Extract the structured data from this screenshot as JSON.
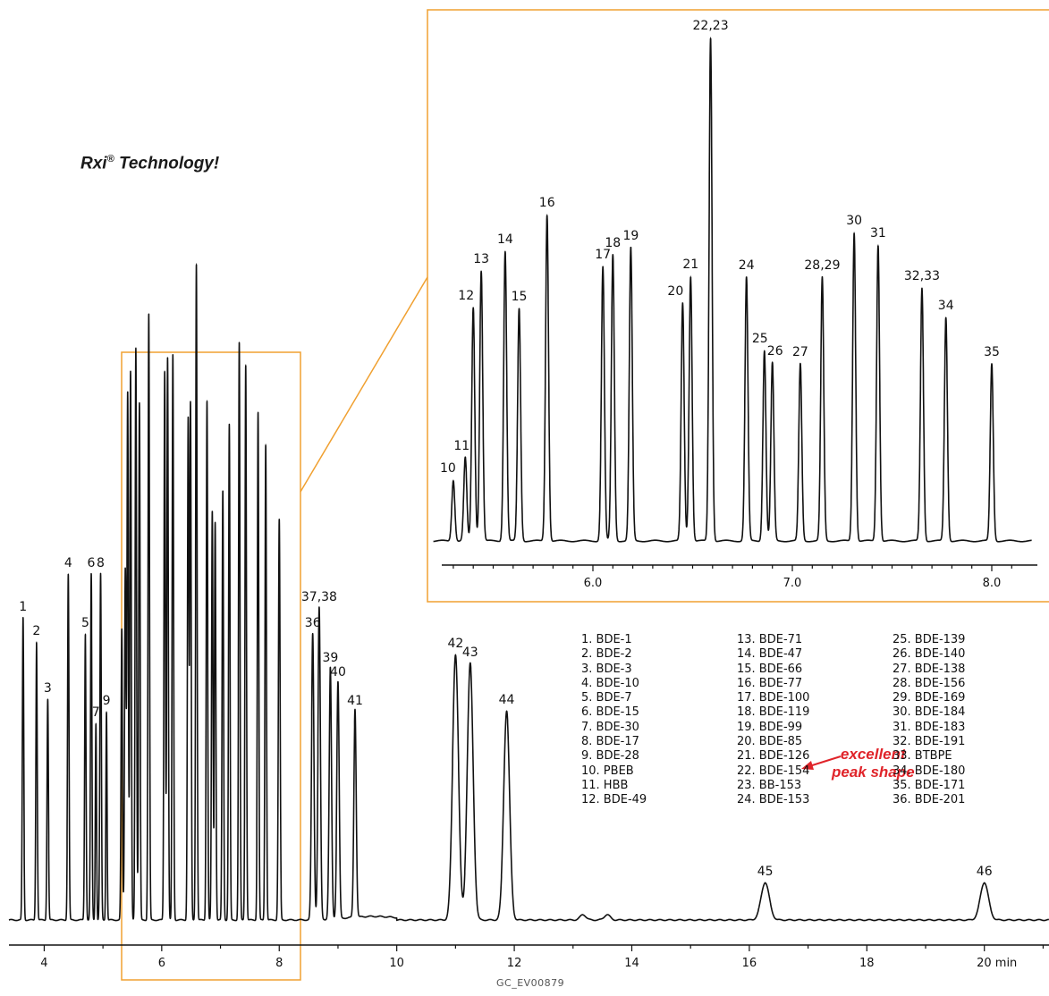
{
  "tagline": {
    "main": "Rxi",
    "reg": "®",
    "rest": " Technology!"
  },
  "footer": "GC_EV00879",
  "annotation": {
    "line1": "excellent",
    "line2": "peak shape"
  },
  "colors": {
    "trace": "#111111",
    "box": "#f0a030",
    "annotation": "#e0242a"
  },
  "chart_data": [
    {
      "type": "line",
      "name": "full chromatogram",
      "xlabel": "min",
      "xlim": [
        3.4,
        21.1
      ],
      "xticks": [
        4,
        6,
        8,
        10,
        12,
        14,
        16,
        18,
        20
      ],
      "xtick_labels": [
        "4",
        "6",
        "8",
        "10",
        "12",
        "14",
        "16",
        "18",
        "20 min"
      ],
      "zoom_box_range": [
        5.3,
        8.2
      ],
      "peaks": [
        {
          "label": "1",
          "t": 3.64,
          "h": 338,
          "w": 0.012
        },
        {
          "label": "2",
          "t": 3.87,
          "h": 311,
          "w": 0.012
        },
        {
          "label": "3",
          "t": 4.06,
          "h": 247,
          "w": 0.012
        },
        {
          "label": "4",
          "t": 4.41,
          "h": 387,
          "w": 0.012
        },
        {
          "label": "5",
          "t": 4.7,
          "h": 320,
          "w": 0.012
        },
        {
          "label": "6",
          "t": 4.8,
          "h": 387,
          "w": 0.012
        },
        {
          "label": "7",
          "t": 4.88,
          "h": 220,
          "w": 0.01
        },
        {
          "label": "8",
          "t": 4.96,
          "h": 387,
          "w": 0.012
        },
        {
          "label": "9",
          "t": 5.06,
          "h": 233,
          "w": 0.01
        },
        {
          "label": "10",
          "t": 5.32,
          "h": 325,
          "w": 0.012
        },
        {
          "label": "11",
          "t": 5.38,
          "h": 392,
          "w": 0.012
        },
        {
          "label": "12",
          "t": 5.42,
          "h": 590,
          "w": 0.012
        },
        {
          "label": "13",
          "t": 5.47,
          "h": 613,
          "w": 0.012
        },
        {
          "label": "14",
          "t": 5.56,
          "h": 640,
          "w": 0.012
        },
        {
          "label": "15",
          "t": 5.62,
          "h": 578,
          "w": 0.012
        },
        {
          "label": "16",
          "t": 5.78,
          "h": 678,
          "w": 0.012
        },
        {
          "label": "17",
          "t": 6.05,
          "h": 614,
          "w": 0.012
        },
        {
          "label": "18",
          "t": 6.1,
          "h": 629,
          "w": 0.012
        },
        {
          "label": "19",
          "t": 6.19,
          "h": 632,
          "w": 0.012
        },
        {
          "label": "20",
          "t": 6.45,
          "h": 561,
          "w": 0.012
        },
        {
          "label": "21",
          "t": 6.49,
          "h": 577,
          "w": 0.012
        },
        {
          "label": "22,23",
          "t": 6.59,
          "h": 734,
          "w": 0.012
        },
        {
          "label": "24",
          "t": 6.77,
          "h": 581,
          "w": 0.012
        },
        {
          "label": "25",
          "t": 6.86,
          "h": 457,
          "w": 0.012
        },
        {
          "label": "26",
          "t": 6.91,
          "h": 445,
          "w": 0.012
        },
        {
          "label": "27",
          "t": 7.04,
          "h": 480,
          "w": 0.012
        },
        {
          "label": "28,29",
          "t": 7.15,
          "h": 554,
          "w": 0.012
        },
        {
          "label": "30",
          "t": 7.32,
          "h": 646,
          "w": 0.012
        },
        {
          "label": "31",
          "t": 7.43,
          "h": 621,
          "w": 0.012
        },
        {
          "label": "32,33",
          "t": 7.64,
          "h": 568,
          "w": 0.012
        },
        {
          "label": "34",
          "t": 7.77,
          "h": 532,
          "w": 0.012
        },
        {
          "label": "35",
          "t": 8.0,
          "h": 448,
          "w": 0.014
        },
        {
          "label": "36",
          "t": 8.57,
          "h": 320,
          "w": 0.02
        },
        {
          "label": "37,38",
          "t": 8.68,
          "h": 349,
          "w": 0.02
        },
        {
          "label": "39",
          "t": 8.87,
          "h": 281,
          "w": 0.02
        },
        {
          "label": "40",
          "t": 9.0,
          "h": 265,
          "w": 0.02
        },
        {
          "label": "41",
          "t": 9.29,
          "h": 233,
          "w": 0.02
        },
        {
          "label": "42",
          "t": 11.0,
          "h": 297,
          "w": 0.05
        },
        {
          "label": "43",
          "t": 11.25,
          "h": 287,
          "w": 0.05
        },
        {
          "label": "44",
          "t": 11.87,
          "h": 234,
          "w": 0.05
        },
        {
          "label": "",
          "t": 13.17,
          "h": 6,
          "w": 0.05
        },
        {
          "label": "",
          "t": 13.58,
          "h": 6,
          "w": 0.05
        },
        {
          "label": "45",
          "t": 16.27,
          "h": 42,
          "w": 0.07
        },
        {
          "label": "46",
          "t": 20.0,
          "h": 42,
          "w": 0.07
        }
      ]
    },
    {
      "type": "line",
      "name": "expanded view",
      "xlim": [
        5.2,
        8.2
      ],
      "xticks": [
        6.0,
        7.0,
        8.0
      ],
      "xtick_labels": [
        "6.0",
        "7.0",
        "8.0"
      ],
      "peaks": [
        {
          "label": "10",
          "t": 5.3,
          "h": 68
        },
        {
          "label": "11",
          "t": 5.36,
          "h": 93
        },
        {
          "label": "12",
          "t": 5.4,
          "h": 261
        },
        {
          "label": "13",
          "t": 5.44,
          "h": 302
        },
        {
          "label": "14",
          "t": 5.56,
          "h": 324
        },
        {
          "label": "15",
          "t": 5.63,
          "h": 260
        },
        {
          "label": "16",
          "t": 5.77,
          "h": 365
        },
        {
          "label": "17",
          "t": 6.05,
          "h": 307
        },
        {
          "label": "18",
          "t": 6.1,
          "h": 320
        },
        {
          "label": "19",
          "t": 6.19,
          "h": 328
        },
        {
          "label": "20",
          "t": 6.45,
          "h": 266
        },
        {
          "label": "21",
          "t": 6.49,
          "h": 296
        },
        {
          "label": "22,23",
          "t": 6.59,
          "h": 563
        },
        {
          "label": "24",
          "t": 6.77,
          "h": 295
        },
        {
          "label": "25",
          "t": 6.86,
          "h": 213
        },
        {
          "label": "26",
          "t": 6.9,
          "h": 199
        },
        {
          "label": "27",
          "t": 7.04,
          "h": 198
        },
        {
          "label": "28,29",
          "t": 7.15,
          "h": 295
        },
        {
          "label": "30",
          "t": 7.31,
          "h": 345
        },
        {
          "label": "31",
          "t": 7.43,
          "h": 331
        },
        {
          "label": "32,33",
          "t": 7.65,
          "h": 283
        },
        {
          "label": "34",
          "t": 7.77,
          "h": 250
        },
        {
          "label": "35",
          "t": 8.0,
          "h": 198
        }
      ]
    }
  ],
  "legend": {
    "col1": [
      "1. BDE-1",
      "2. BDE-2",
      "3. BDE-3",
      "4. BDE-10",
      "5. BDE-7",
      "6. BDE-15",
      "7. BDE-30",
      "8. BDE-17",
      "9. BDE-28",
      "10. PBEB",
      "11. HBB",
      "12. BDE-49"
    ],
    "col2": [
      "13. BDE-71",
      "14. BDE-47",
      "15. BDE-66",
      "16. BDE-77",
      "17. BDE-100",
      "18. BDE-119",
      "19. BDE-99",
      "20. BDE-85",
      "21. BDE-126",
      "22. BDE-154",
      "23. BB-153",
      "24. BDE-153"
    ],
    "col3": [
      "25. BDE-139",
      "26. BDE-140",
      "27. BDE-138",
      "28. BDE-156",
      "29. BDE-169",
      "30. BDE-184",
      "31. BDE-183",
      "32. BDE-191",
      "33. BTBPE",
      "34. BDE-180",
      "35. BDE-171",
      "36. BDE-201"
    ]
  }
}
